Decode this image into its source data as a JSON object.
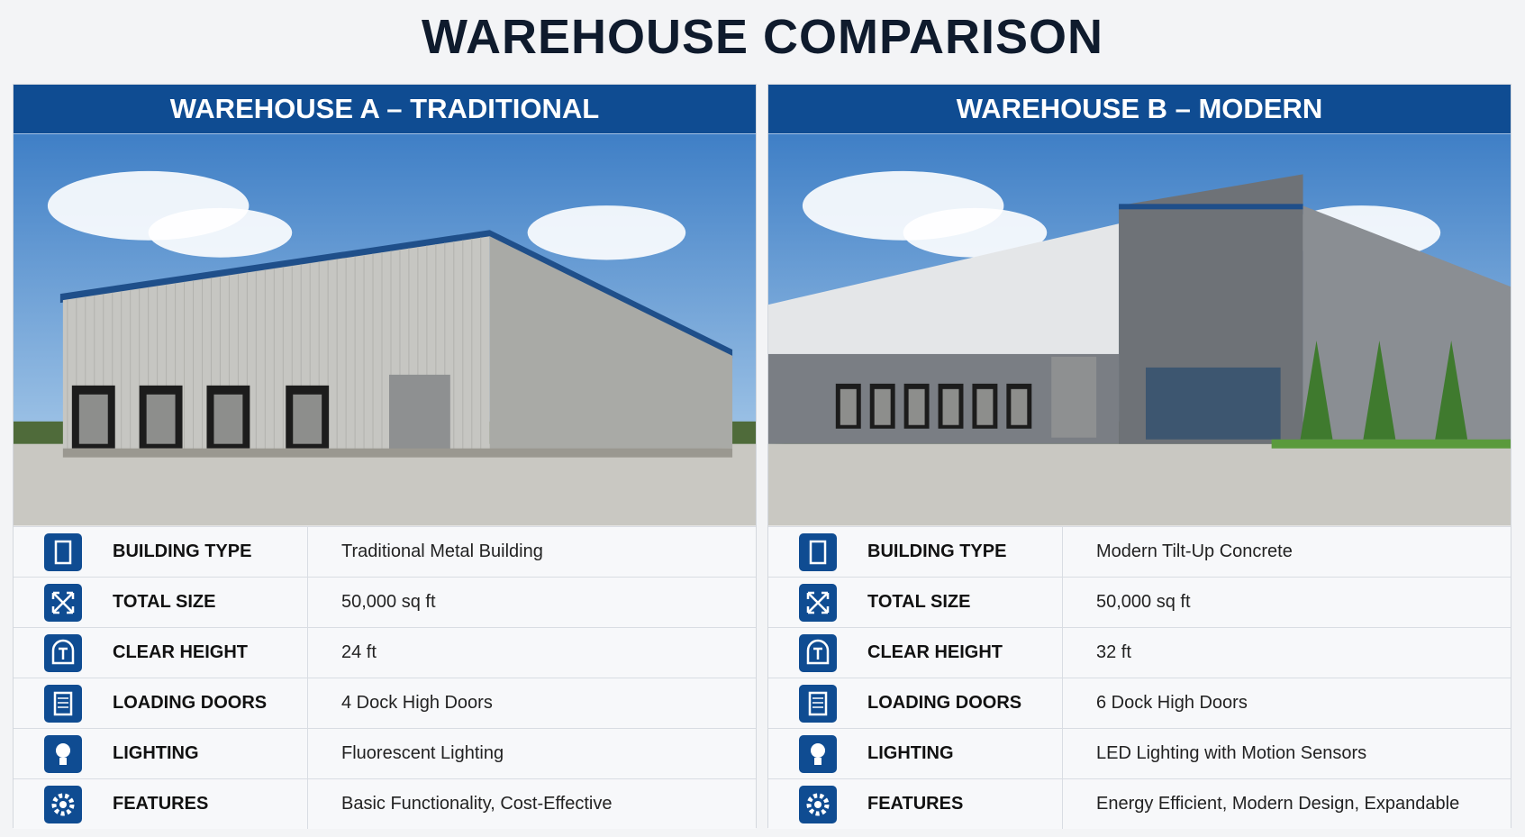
{
  "title": "WAREHOUSE COMPARISON",
  "panels": [
    {
      "header": "WAREHOUSE A – TRADITIONAL",
      "rows": [
        {
          "label": "BUILDING TYPE",
          "value": "Traditional Metal Building"
        },
        {
          "label": "TOTAL SIZE",
          "value": "50,000 sq ft"
        },
        {
          "label": "CLEAR HEIGHT",
          "value": "24 ft"
        },
        {
          "label": "LOADING DOORS",
          "value": "4 Dock High Doors"
        },
        {
          "label": "LIGHTING",
          "value": "Fluorescent Lighting"
        },
        {
          "label": "FEATURES",
          "value": "Basic Functionality, Cost-Effective"
        }
      ]
    },
    {
      "header": "WAREHOUSE B – MODERN",
      "rows": [
        {
          "label": "BUILDING TYPE",
          "value": "Modern Tilt-Up Concrete"
        },
        {
          "label": "TOTAL SIZE",
          "value": "50,000 sq ft"
        },
        {
          "label": "CLEAR HEIGHT",
          "value": "32 ft"
        },
        {
          "label": "LOADING DOORS",
          "value": "6 Dock High Doors"
        },
        {
          "label": "LIGHTING",
          "value": "LED Lighting with Motion Sensors"
        },
        {
          "label": "FEATURES",
          "value": "Energy Efficient, Modern Design, Expandable"
        }
      ]
    }
  ]
}
